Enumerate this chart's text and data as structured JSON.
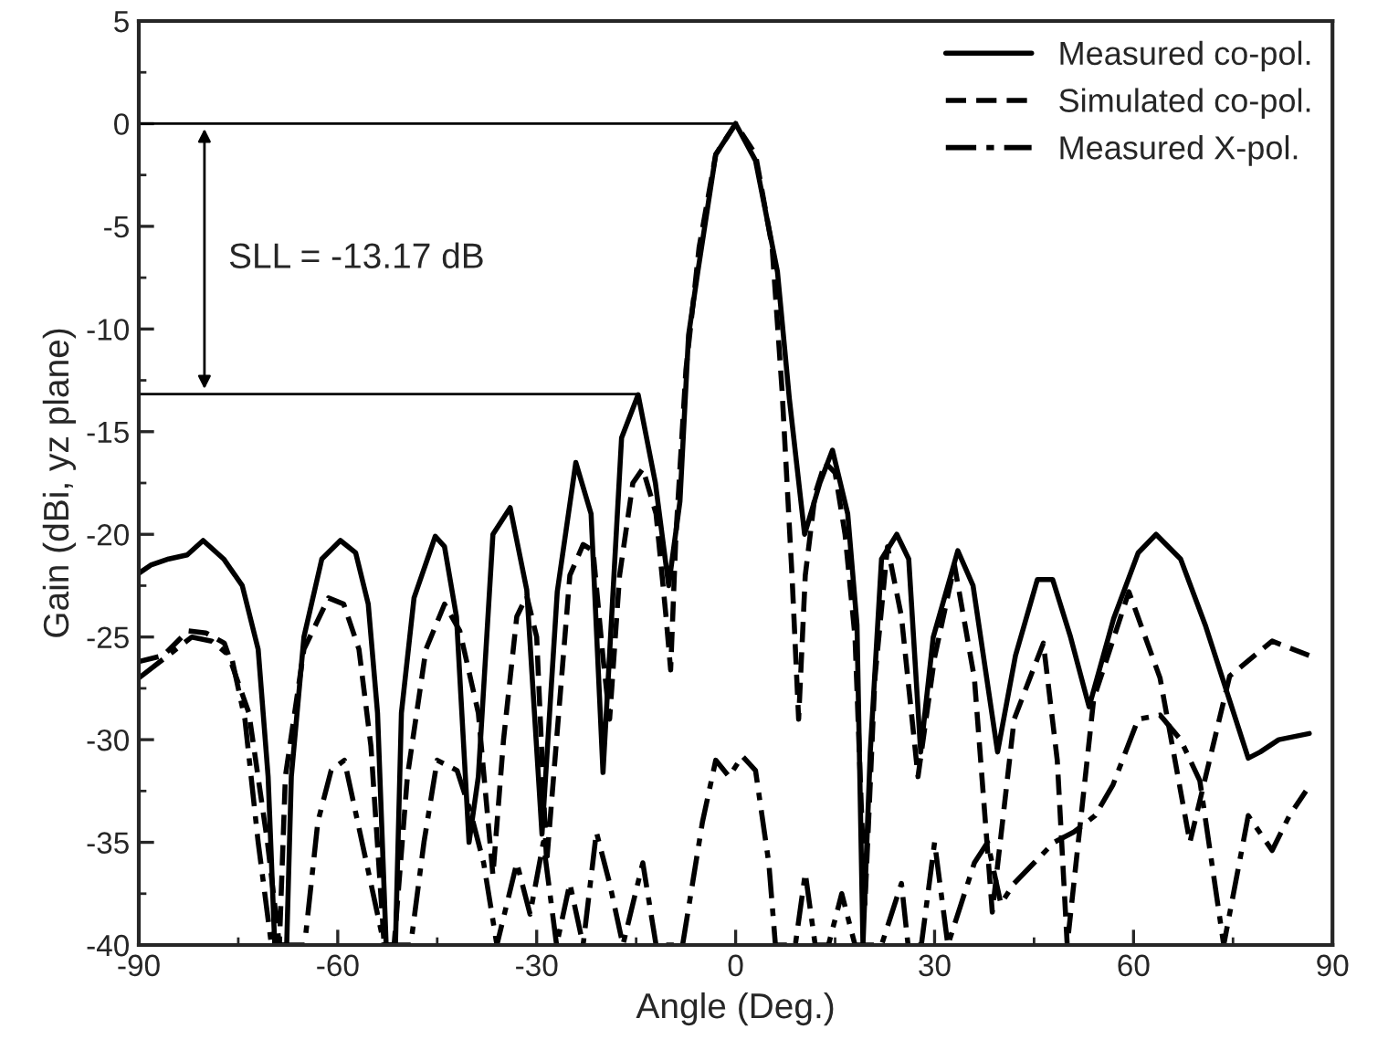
{
  "chart_data": {
    "type": "line",
    "xlabel": "Angle (Deg.)",
    "ylabel": "Gain (dBi, yz plane)",
    "xlim": [
      -90,
      90
    ],
    "xticks": [
      -90,
      -60,
      -30,
      0,
      30,
      60,
      90
    ],
    "ylim": [
      -40,
      5
    ],
    "yticks": [
      -40,
      -35,
      -30,
      -25,
      -20,
      -15,
      -10,
      -5,
      0,
      5
    ],
    "legend": "top right",
    "marker": "none",
    "grid": false,
    "ref_lines": [
      {
        "axis": "y",
        "value": 0,
        "color": "#000000"
      },
      {
        "axis": "y",
        "value": -13.17,
        "color": "#000000"
      }
    ],
    "annotations": [
      "SLL = -13.17 dB"
    ],
    "series": [
      {
        "name": "Measured co-pol.",
        "color": "#000000",
        "line_style": "solid",
        "x": [
          -90,
          -88.2,
          -85.5,
          -82.7,
          -80.3,
          -77.2,
          -74.4,
          -72,
          -70.5,
          -69.5,
          -67.7,
          -67,
          -65.1,
          -62.4,
          -59.6,
          -57.3,
          -55.4,
          -54,
          -52.7,
          -51.3,
          -50.4,
          -48.5,
          -45.3,
          -43.9,
          -42.1,
          -40.2,
          -38.8,
          -36.6,
          -34,
          -31.5,
          -29.2,
          -26.9,
          -24.1,
          -21.8,
          -20,
          -17.2,
          -14.7,
          -12.1,
          -10.1,
          -8.4,
          -7.1,
          -5.7,
          -3,
          0,
          3,
          6.3,
          8.1,
          10.4,
          12.7,
          14.6,
          16.9,
          18.3,
          19.2,
          20.3,
          22,
          24.3,
          26.1,
          27.9,
          29.8,
          33.5,
          35.8,
          39.5,
          42.2,
          45.5,
          47.8,
          50.5,
          53.3,
          57,
          60.7,
          63.4,
          67.1,
          70.8,
          74.5,
          77.3,
          79.1,
          81.9,
          86.5
        ],
        "values": [
          -21.9,
          -21.5,
          -21.2,
          -21,
          -20.3,
          -21.2,
          -22.5,
          -25.6,
          -31.8,
          -40,
          -40,
          -31.8,
          -25,
          -21.2,
          -20.3,
          -20.9,
          -23.4,
          -28.7,
          -40,
          -40,
          -28.7,
          -23.1,
          -20.1,
          -20.6,
          -24,
          -35,
          -31.8,
          -20,
          -18.7,
          -22.7,
          -34.6,
          -22.8,
          -16.5,
          -19,
          -31.6,
          -15.3,
          -13.2,
          -17.5,
          -22.5,
          -18.4,
          -10.3,
          -7.2,
          -1.5,
          0,
          -1.8,
          -7.2,
          -13.4,
          -20,
          -17.5,
          -15.9,
          -19,
          -24.4,
          -40,
          -30.6,
          -21.2,
          -20,
          -21.2,
          -30.6,
          -25,
          -20.8,
          -22.5,
          -30.6,
          -25.9,
          -22.2,
          -22.2,
          -25,
          -28.4,
          -24.1,
          -20.9,
          -20,
          -21.2,
          -24.4,
          -28.1,
          -30.9,
          -30.6,
          -30,
          -29.7
        ]
      },
      {
        "name": "Simulated co-pol.",
        "color": "#000000",
        "line_style": "dashed",
        "x": [
          -90,
          -86.3,
          -82.6,
          -79.9,
          -77.1,
          -73.4,
          -70.6,
          -68.8,
          -67.9,
          -65.1,
          -61.4,
          -59.1,
          -56.8,
          -55,
          -53,
          -51.5,
          -49.5,
          -46.7,
          -43.9,
          -41.6,
          -38.8,
          -36.6,
          -35,
          -33,
          -31.5,
          -30,
          -28.5,
          -27,
          -25,
          -23,
          -21.5,
          -20,
          -19,
          -17.5,
          -15.5,
          -14,
          -12,
          -10.5,
          -9.8,
          -9,
          -7.5,
          -5.5,
          -3,
          0,
          3,
          5.5,
          7,
          8.5,
          9.5,
          10.5,
          12,
          13.5,
          15,
          16.5,
          18,
          19.5,
          21,
          22.9,
          25,
          27.5,
          30,
          33,
          36,
          38.7,
          42,
          46.4,
          48.5,
          50,
          54,
          59.3,
          64,
          68.5,
          74.5,
          80.9,
          86.5
        ],
        "values": [
          -26.2,
          -25.9,
          -24.7,
          -24.8,
          -25.3,
          -28.7,
          -35,
          -40,
          -31.8,
          -25.6,
          -23.1,
          -23.4,
          -25.6,
          -30.3,
          -40,
          -40,
          -31.8,
          -25.6,
          -23.4,
          -24.7,
          -28.7,
          -36.6,
          -30,
          -24,
          -23,
          -25,
          -36,
          -30,
          -22,
          -20.5,
          -20.8,
          -26,
          -29,
          -22,
          -17.5,
          -16.8,
          -19,
          -24,
          -26.6,
          -20,
          -12,
          -6,
          -1.5,
          0,
          -1.5,
          -6,
          -13,
          -22,
          -29,
          -22,
          -18,
          -16.5,
          -17,
          -20,
          -25,
          -38,
          -27,
          -20.6,
          -24,
          -31.8,
          -26,
          -21.5,
          -27,
          -38.4,
          -29,
          -25.3,
          -31,
          -40,
          -28,
          -22.8,
          -27,
          -35,
          -26.9,
          -25.2,
          -25.9
        ]
      },
      {
        "name": "Measured X-pol.",
        "color": "#000000",
        "line_style": "dashdot",
        "x": [
          -90,
          -86,
          -82,
          -79,
          -76,
          -74,
          -72,
          -70,
          -65,
          -63,
          -61,
          -59,
          -57,
          -55,
          -53,
          -49,
          -47,
          -45,
          -42,
          -40,
          -38,
          -36,
          -33,
          -31,
          -29,
          -27,
          -25,
          -23,
          -21,
          -19,
          -17,
          -14,
          -12,
          -8,
          -5,
          -3,
          -1,
          1,
          3,
          5,
          6,
          9,
          10.5,
          12,
          14,
          16,
          18,
          22,
          25,
          26,
          28,
          30,
          32,
          34,
          36,
          38,
          40,
          42,
          45,
          48,
          51,
          54.2,
          56.9,
          60.7,
          64,
          67.1,
          70,
          73.6,
          77.3,
          80.9,
          83.5,
          86
        ],
        "values": [
          -27,
          -26,
          -25,
          -25.2,
          -26,
          -29,
          -35,
          -40,
          -40,
          -34,
          -31.5,
          -31,
          -34,
          -37,
          -40,
          -40,
          -35,
          -31,
          -31.5,
          -33.5,
          -36,
          -40,
          -36,
          -38.5,
          -35,
          -40,
          -37,
          -40,
          -34.5,
          -37,
          -40,
          -36,
          -40,
          -40,
          -34,
          -31,
          -31.8,
          -30.8,
          -31.5,
          -36,
          -40,
          -40,
          -36.5,
          -40,
          -40,
          -37.5,
          -40,
          -40,
          -37,
          -40,
          -40,
          -35,
          -40,
          -38,
          -36,
          -35,
          -38,
          -37,
          -36,
          -35,
          -34.5,
          -33.7,
          -32.2,
          -29,
          -28.8,
          -30,
          -32,
          -40,
          -33.7,
          -35.4,
          -33.7,
          -32.5
        ]
      }
    ]
  }
}
